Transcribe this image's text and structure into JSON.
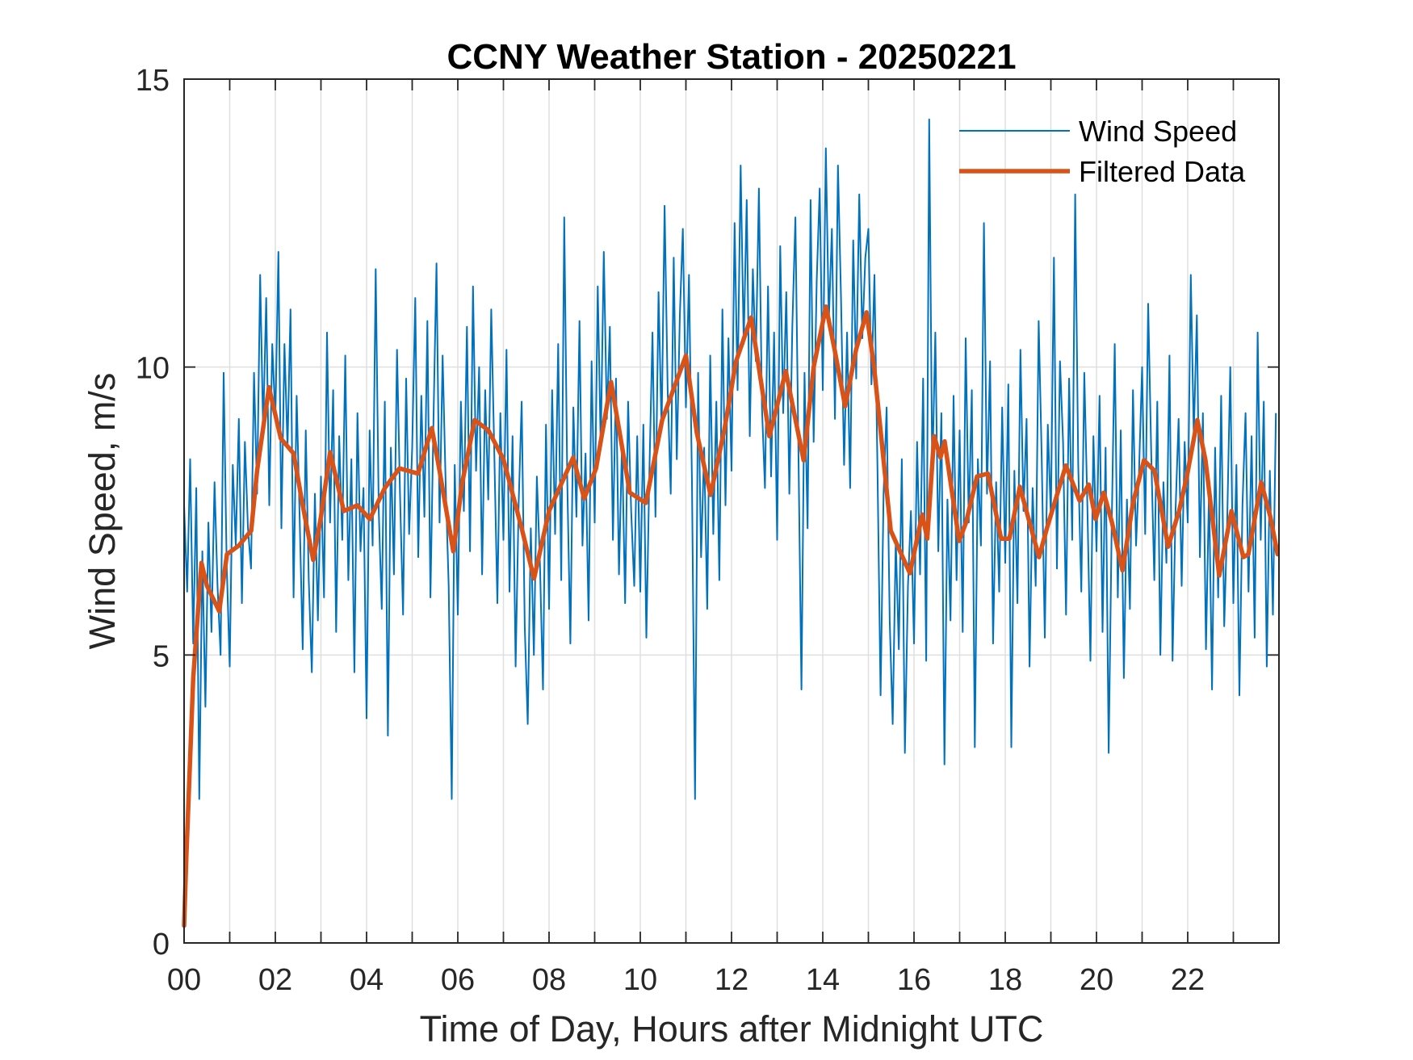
{
  "chart_data": {
    "type": "line",
    "title": "CCNY Weather Station - 20250221",
    "xlabel": "Time of Day, Hours after Midnight UTC",
    "ylabel": "Wind Speed, m/s",
    "xlim": [
      0,
      24
    ],
    "ylim": [
      0,
      15
    ],
    "x_ticks": [
      0,
      1,
      2,
      3,
      4,
      5,
      6,
      7,
      8,
      9,
      10,
      11,
      12,
      13,
      14,
      15,
      16,
      17,
      18,
      19,
      20,
      21,
      22,
      23
    ],
    "x_tick_labels": [
      "00",
      "",
      "02",
      "",
      "04",
      "",
      "06",
      "",
      "08",
      "",
      "10",
      "",
      "12",
      "",
      "14",
      "",
      "16",
      "",
      "18",
      "",
      "20",
      "",
      "22",
      ""
    ],
    "y_ticks": [
      0,
      5,
      10,
      15
    ],
    "y_tick_labels": [
      "0",
      "5",
      "10",
      "15"
    ],
    "grid": true,
    "legend_position": "top-right",
    "legend": [
      "Wind Speed",
      "Filtered Data"
    ],
    "series": [
      {
        "name": "Wind Speed",
        "color": "#0072BD",
        "x_start_hours": 0,
        "x_step_hours": 0.0666667,
        "values": [
          7.6,
          6.1,
          8.4,
          5.2,
          7.9,
          2.5,
          6.8,
          4.1,
          7.3,
          5.4,
          8.0,
          6.2,
          5.0,
          9.9,
          6.6,
          4.8,
          8.3,
          6.9,
          9.1,
          5.9,
          8.7,
          7.2,
          6.5,
          9.9,
          7.8,
          11.6,
          8.9,
          11.2,
          7.6,
          10.4,
          9.1,
          12.0,
          7.2,
          10.4,
          8.6,
          11.0,
          6.0,
          9.5,
          7.4,
          5.1,
          8.9,
          6.3,
          4.7,
          7.8,
          5.6,
          8.1,
          6.0,
          10.6,
          7.3,
          9.6,
          5.4,
          8.8,
          7.0,
          10.2,
          6.3,
          8.4,
          4.7,
          9.2,
          6.8,
          7.9,
          3.9,
          8.9,
          6.9,
          11.7,
          7.5,
          5.8,
          9.4,
          3.6,
          8.6,
          6.4,
          10.3,
          7.8,
          5.7,
          9.8,
          7.1,
          8.6,
          11.2,
          6.7,
          9.5,
          7.4,
          10.8,
          6.0,
          9.1,
          11.8,
          7.3,
          10.2,
          8.0,
          6.2,
          2.5,
          8.3,
          5.7,
          9.4,
          7.5,
          10.7,
          6.8,
          11.4,
          8.2,
          10.0,
          6.4,
          9.6,
          7.7,
          11.0,
          8.5,
          5.9,
          9.2,
          7.0,
          10.3,
          6.1,
          8.8,
          4.8,
          7.6,
          9.4,
          5.5,
          3.8,
          7.2,
          5.0,
          8.1,
          6.6,
          4.4,
          9.0,
          5.8,
          9.6,
          7.1,
          10.4,
          6.3,
          12.6,
          8.0,
          5.2,
          9.3,
          7.4,
          10.8,
          6.9,
          8.5,
          5.6,
          10.1,
          7.3,
          11.4,
          8.6,
          12.0,
          9.1,
          10.7,
          7.0,
          9.8,
          6.4,
          8.7,
          5.9,
          9.4,
          7.5,
          6.2,
          8.8,
          6.1,
          9.0,
          5.3,
          8.2,
          10.6,
          7.4,
          11.3,
          8.9,
          12.8,
          9.6,
          7.8,
          11.9,
          8.4,
          10.9,
          12.4,
          9.3,
          11.6,
          8.0,
          2.5,
          9.9,
          6.7,
          8.6,
          5.8,
          10.2,
          7.1,
          9.4,
          6.3,
          11.0,
          7.6,
          10.5,
          8.2,
          12.5,
          9.6,
          13.5,
          10.4,
          12.9,
          8.8,
          11.7,
          10.1,
          13.1,
          9.3,
          7.9,
          11.4,
          8.1,
          10.6,
          7.0,
          12.1,
          9.2,
          11.3,
          7.8,
          10.7,
          12.6,
          8.5,
          4.4,
          9.9,
          7.2,
          12.9,
          8.7,
          11.5,
          13.1,
          9.6,
          13.8,
          10.8,
          12.4,
          9.1,
          13.5,
          11.2,
          8.3,
          10.6,
          7.9,
          12.2,
          9.8,
          13.0,
          10.5,
          11.9,
          12.4,
          9.7,
          11.6,
          8.2,
          4.3,
          7.8,
          9.3,
          5.6,
          3.8,
          7.0,
          5.1,
          8.4,
          3.3,
          6.2,
          7.5,
          5.2,
          8.7,
          6.4,
          9.8,
          4.9,
          14.3,
          8.1,
          10.6,
          6.8,
          9.2,
          3.1,
          7.7,
          5.6,
          9.5,
          6.3,
          8.9,
          5.4,
          10.5,
          7.3,
          9.6,
          3.4,
          8.4,
          6.9,
          12.5,
          7.8,
          10.1,
          5.2,
          8.0,
          6.1,
          9.3,
          6.6,
          9.7,
          3.4,
          8.2,
          5.9,
          10.3,
          7.5,
          9.1,
          4.8,
          7.9,
          6.2,
          10.8,
          8.4,
          5.3,
          9.0,
          7.4,
          11.9,
          6.5,
          10.1,
          8.7,
          5.7,
          9.8,
          7.0,
          13.0,
          8.3,
          6.1,
          9.9,
          7.6,
          4.9,
          8.8,
          6.8,
          9.5,
          5.4,
          8.6,
          3.3,
          7.2,
          10.4,
          6.0,
          8.9,
          4.6,
          7.7,
          5.8,
          9.6,
          6.9,
          8.2,
          10.0,
          7.1,
          11.1,
          8.5,
          6.3,
          9.4,
          5.0,
          8.0,
          6.6,
          10.2,
          4.9,
          7.5,
          9.1,
          6.2,
          8.7,
          7.3,
          11.6,
          8.8,
          10.9,
          6.7,
          9.2,
          5.1,
          7.9,
          4.4,
          8.6,
          6.0,
          9.5,
          5.5,
          7.4,
          10.0,
          5.9,
          8.3,
          4.3,
          7.6,
          9.2,
          6.1,
          8.8,
          5.3,
          10.6,
          7.0,
          9.4,
          4.8,
          8.2,
          5.7,
          9.2
        ]
      },
      {
        "name": "Filtered Data",
        "color": "#D95319",
        "points": [
          [
            0,
            0.3
          ],
          [
            0.05,
            1.5
          ],
          [
            0.2,
            4.6
          ],
          [
            0.38,
            6.6
          ],
          [
            0.5,
            6.2
          ],
          [
            0.77,
            5.76
          ],
          [
            0.94,
            6.75
          ],
          [
            1.2,
            6.9
          ],
          [
            1.47,
            7.16
          ],
          [
            1.6,
            8.2
          ],
          [
            1.86,
            9.65
          ],
          [
            2.12,
            8.76
          ],
          [
            2.4,
            8.5
          ],
          [
            2.6,
            7.6
          ],
          [
            2.83,
            6.65
          ],
          [
            3.0,
            7.4
          ],
          [
            3.2,
            8.52
          ],
          [
            3.5,
            7.5
          ],
          [
            3.8,
            7.6
          ],
          [
            4.07,
            7.36
          ],
          [
            4.4,
            7.9
          ],
          [
            4.72,
            8.24
          ],
          [
            5.13,
            8.15
          ],
          [
            5.43,
            8.94
          ],
          [
            5.6,
            8.2
          ],
          [
            5.9,
            6.8
          ],
          [
            6.1,
            8.0
          ],
          [
            6.37,
            9.08
          ],
          [
            6.67,
            8.9
          ],
          [
            7.0,
            8.4
          ],
          [
            7.4,
            7.2
          ],
          [
            7.67,
            6.33
          ],
          [
            8.0,
            7.5
          ],
          [
            8.53,
            8.43
          ],
          [
            8.77,
            7.72
          ],
          [
            9.03,
            8.24
          ],
          [
            9.36,
            9.74
          ],
          [
            9.77,
            7.82
          ],
          [
            10.12,
            7.64
          ],
          [
            10.48,
            9.08
          ],
          [
            11.0,
            10.2
          ],
          [
            11.24,
            8.85
          ],
          [
            11.54,
            7.78
          ],
          [
            11.84,
            8.9
          ],
          [
            12.1,
            10.1
          ],
          [
            12.43,
            10.86
          ],
          [
            12.83,
            8.8
          ],
          [
            13.19,
            9.93
          ],
          [
            13.58,
            8.38
          ],
          [
            13.8,
            10.0
          ],
          [
            14.07,
            11.05
          ],
          [
            14.26,
            10.3
          ],
          [
            14.49,
            9.32
          ],
          [
            14.73,
            10.3
          ],
          [
            14.96,
            10.95
          ],
          [
            15.13,
            9.97
          ],
          [
            15.49,
            7.16
          ],
          [
            15.91,
            6.42
          ],
          [
            16.18,
            7.44
          ],
          [
            16.29,
            7.02
          ],
          [
            16.44,
            8.8
          ],
          [
            16.58,
            8.43
          ],
          [
            16.67,
            8.71
          ],
          [
            16.99,
            6.98
          ],
          [
            17.14,
            7.3
          ],
          [
            17.38,
            8.1
          ],
          [
            17.62,
            8.15
          ],
          [
            17.91,
            7.02
          ],
          [
            18.09,
            7.02
          ],
          [
            18.32,
            7.92
          ],
          [
            18.74,
            6.7
          ],
          [
            18.92,
            7.22
          ],
          [
            19.33,
            8.29
          ],
          [
            19.63,
            7.68
          ],
          [
            19.83,
            7.96
          ],
          [
            19.98,
            7.36
          ],
          [
            20.16,
            7.82
          ],
          [
            20.34,
            7.3
          ],
          [
            20.57,
            6.47
          ],
          [
            20.8,
            7.64
          ],
          [
            21.04,
            8.38
          ],
          [
            21.27,
            8.2
          ],
          [
            21.57,
            6.88
          ],
          [
            21.81,
            7.5
          ],
          [
            21.98,
            8.1
          ],
          [
            22.21,
            9.08
          ],
          [
            22.39,
            8.38
          ],
          [
            22.69,
            6.38
          ],
          [
            22.96,
            7.5
          ],
          [
            23.22,
            6.7
          ],
          [
            23.33,
            6.75
          ],
          [
            23.61,
            8.0
          ],
          [
            23.81,
            7.4
          ],
          [
            23.97,
            6.75
          ]
        ]
      }
    ]
  }
}
